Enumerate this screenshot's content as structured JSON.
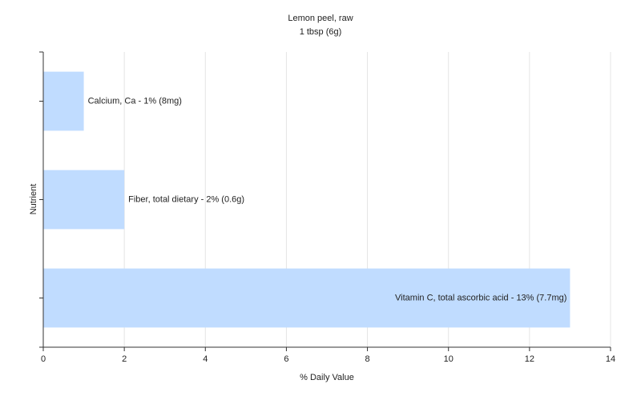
{
  "chart_data": {
    "type": "hbar",
    "title": "Lemon peel, raw",
    "subtitle": "1 tbsp (6g)",
    "xlabel": "% Daily Value",
    "ylabel": "Nutrient",
    "categories": [
      "Calcium, Ca - 1% (8mg)",
      "Fiber, total dietary - 2% (0.6g)",
      "Vitamin C, total ascorbic acid - 13% (7.7mg)"
    ],
    "values": [
      1,
      2,
      13
    ],
    "color": "#c0dcff",
    "xlim": [
      0,
      14
    ],
    "xticks": [
      0,
      2,
      4,
      6,
      8,
      10,
      12,
      14
    ],
    "grid": true
  }
}
